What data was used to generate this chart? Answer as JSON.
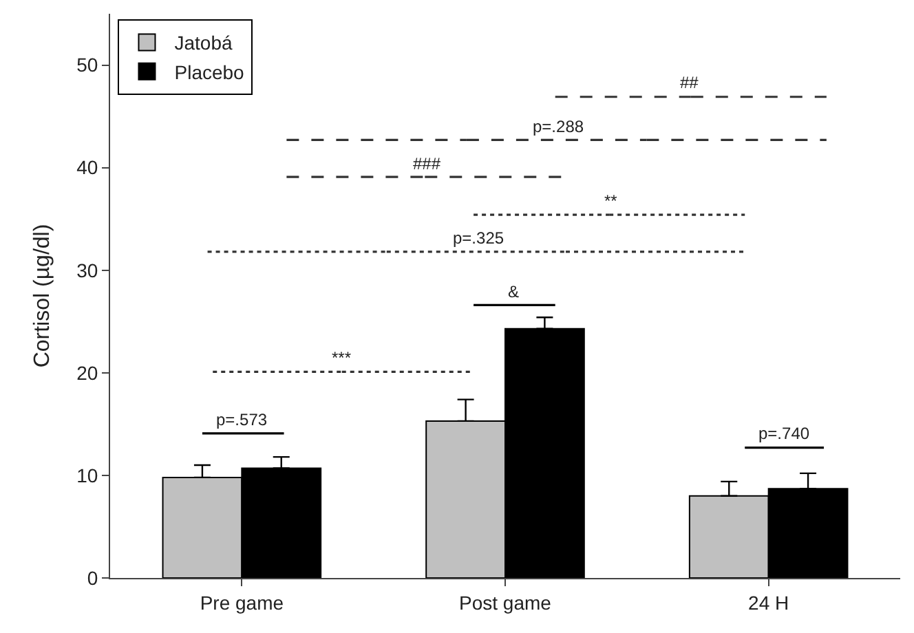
{
  "chart_data": {
    "type": "bar",
    "ylabel": "Cortisol (µg/dl)",
    "categories": [
      "Pre game",
      "Post game",
      "24 H"
    ],
    "ylim": [
      0,
      55
    ],
    "yticks": [
      0,
      10,
      20,
      30,
      40,
      50
    ],
    "legend": "top left",
    "series": [
      {
        "name": "Jatobá",
        "color": "#c0c0c0",
        "values": [
          9.8,
          15.3,
          8.0
        ],
        "errors": [
          [
            9.8,
            11.0
          ],
          [
            15.3,
            17.4
          ],
          [
            8.0,
            9.4
          ]
        ]
      },
      {
        "name": "Placebo",
        "color": "#000000",
        "values": [
          10.7,
          24.3,
          8.7
        ],
        "errors": [
          [
            10.7,
            11.8
          ],
          [
            24.3,
            25.4
          ],
          [
            8.7,
            10.2
          ]
        ]
      }
    ],
    "annotations": [
      "##",
      "p=.288",
      "###",
      "**",
      "p=.325",
      "&",
      "***",
      "p=.573",
      "p=.740"
    ]
  }
}
